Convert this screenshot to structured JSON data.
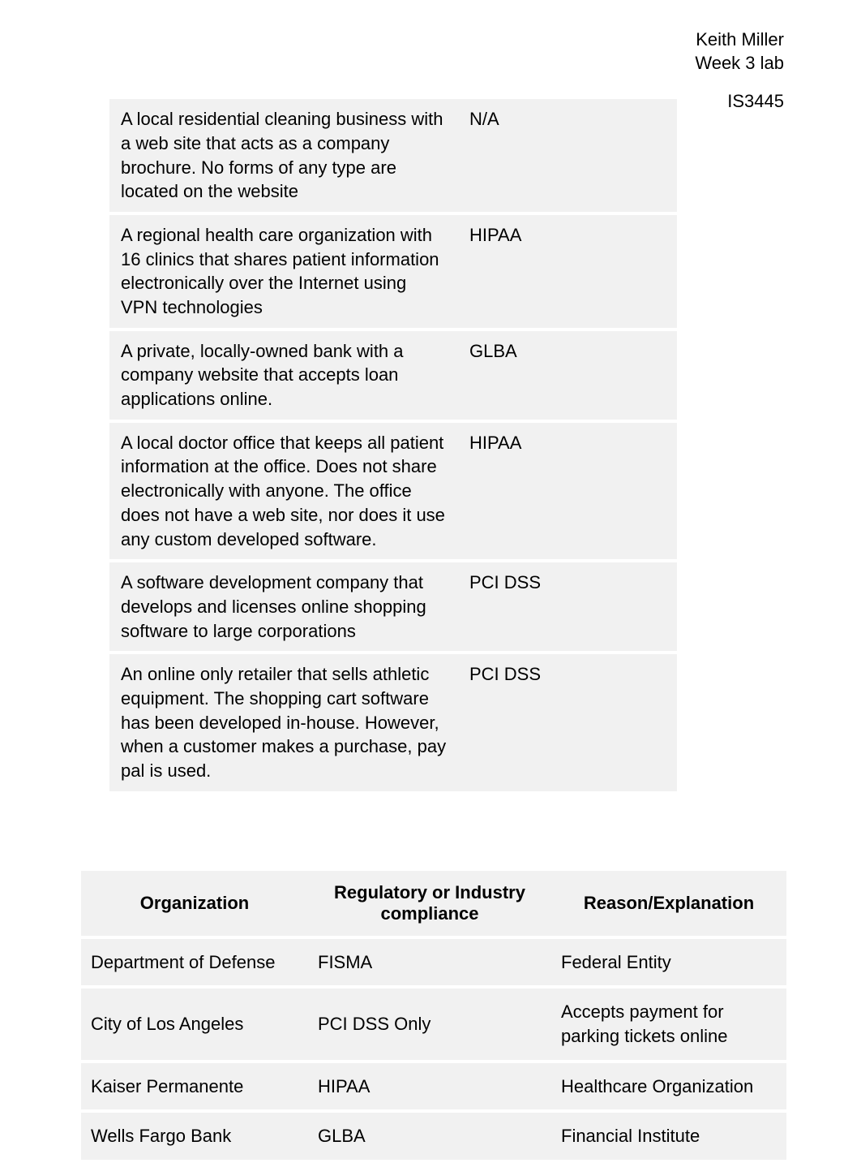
{
  "header": {
    "name": "Keith Miller",
    "week": "Week 3 lab",
    "course": "IS3445"
  },
  "table1": {
    "rows": [
      {
        "desc": "A local residential cleaning business with a web site that acts as a company brochure. No forms of any type are located on the website",
        "value": "N/A"
      },
      {
        "desc": "A regional health care organization with 16 clinics that shares patient information electronically over the Internet using VPN technologies",
        "value": "HIPAA"
      },
      {
        "desc": "A private, locally-owned bank with a company website that accepts loan applications online.",
        "value": "GLBA"
      },
      {
        "desc": "A local doctor office that keeps all patient information at the office. Does not share electronically with anyone. The office does not have a web site, nor does it use any custom developed software.",
        "value": "HIPAA"
      },
      {
        "desc": "A software development company that develops and licenses online shopping software to large corporations",
        "value": "PCI DSS"
      },
      {
        "desc": "An online only retailer that sells athletic equipment. The shopping cart software has been developed in-house. However, when a customer makes a purchase, pay pal is used.",
        "value": "PCI DSS"
      }
    ]
  },
  "table2": {
    "headers": {
      "c1": "Organization",
      "c2": "Regulatory or Industry compliance",
      "c3": "Reason/Explanation"
    },
    "rows": [
      {
        "org": "Department of Defense",
        "reg": "FISMA",
        "reason": "Federal Entity"
      },
      {
        "org": "City of Los Angeles",
        "reg": "PCI DSS Only",
        "reason": "Accepts payment for parking tickets online"
      },
      {
        "org": "Kaiser Permanente",
        "reg": "HIPAA",
        "reason": "Healthcare Organization"
      },
      {
        "org": "Wells Fargo Bank",
        "reg": "GLBA",
        "reason": "Financial Institute"
      }
    ]
  }
}
